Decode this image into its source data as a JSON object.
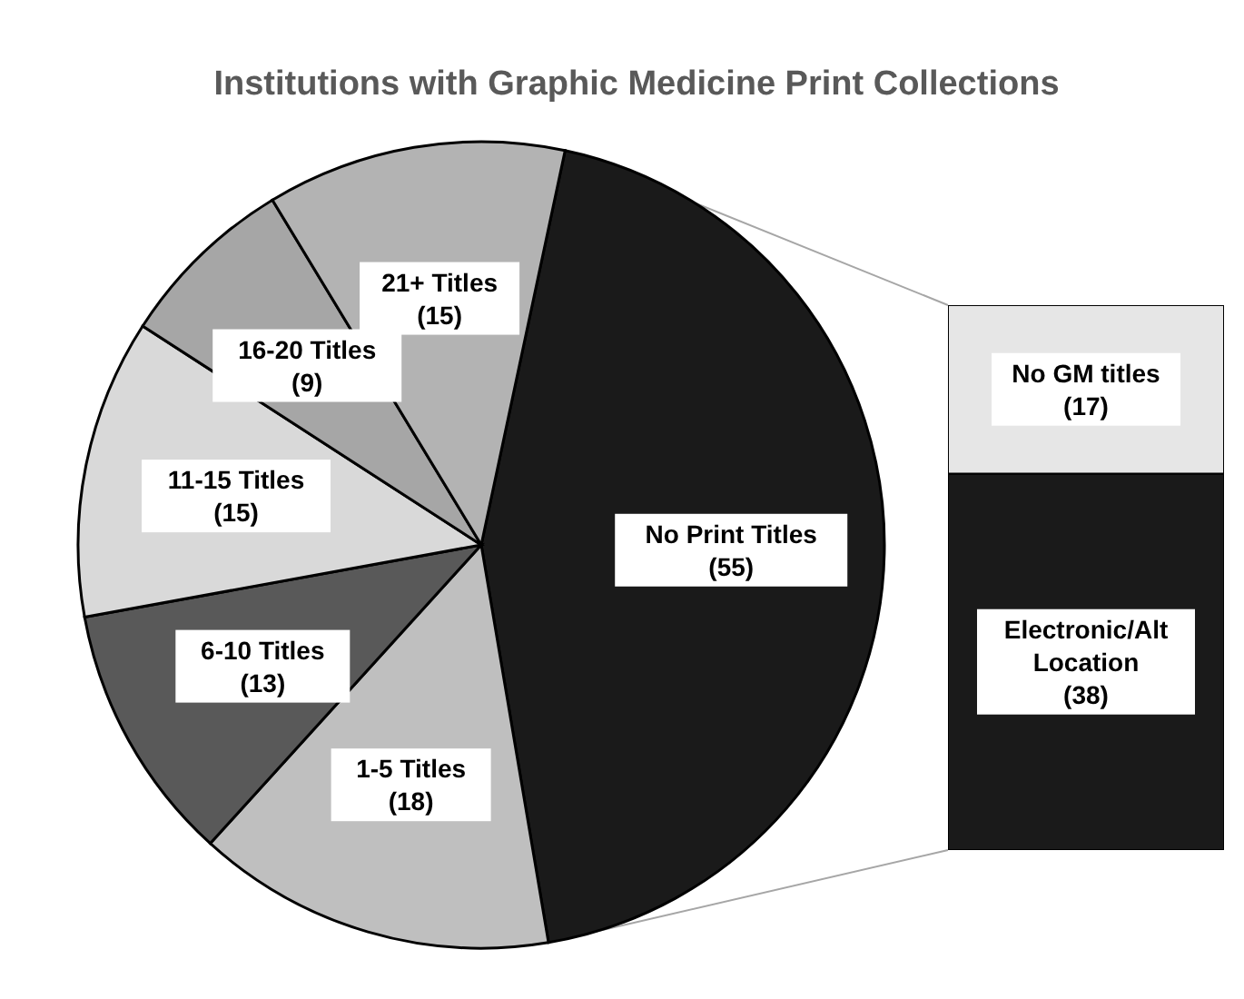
{
  "chart_data": [
    {
      "type": "pie",
      "title": "Institutions with Graphic Medicine Print Collections",
      "categories": [
        "No Print Titles",
        "1-5 Titles",
        "6-10 Titles",
        "11-15 Titles",
        "16-20 Titles",
        "21+ Titles"
      ],
      "values": [
        55,
        18,
        13,
        15,
        9,
        15
      ],
      "colors": [
        "#1a1a1a",
        "#bfbfbf",
        "#595959",
        "#d9d9d9",
        "#a6a6a6",
        "#b3b3b3"
      ],
      "value_labels": [
        "(55)",
        "(18)",
        "(13)",
        "(15)",
        "(9)",
        "(15)"
      ]
    },
    {
      "type": "bar",
      "stacked": true,
      "categories": [
        null
      ],
      "series": [
        {
          "name": "Electronic/Alt Location",
          "color": "#1a1a1a",
          "values": [
            38
          ],
          "value_labels": [
            "(38)"
          ]
        },
        {
          "name": "No GM titles",
          "color": "#e6e6e6",
          "values": [
            17
          ],
          "value_labels": [
            "(17)"
          ]
        }
      ]
    }
  ]
}
